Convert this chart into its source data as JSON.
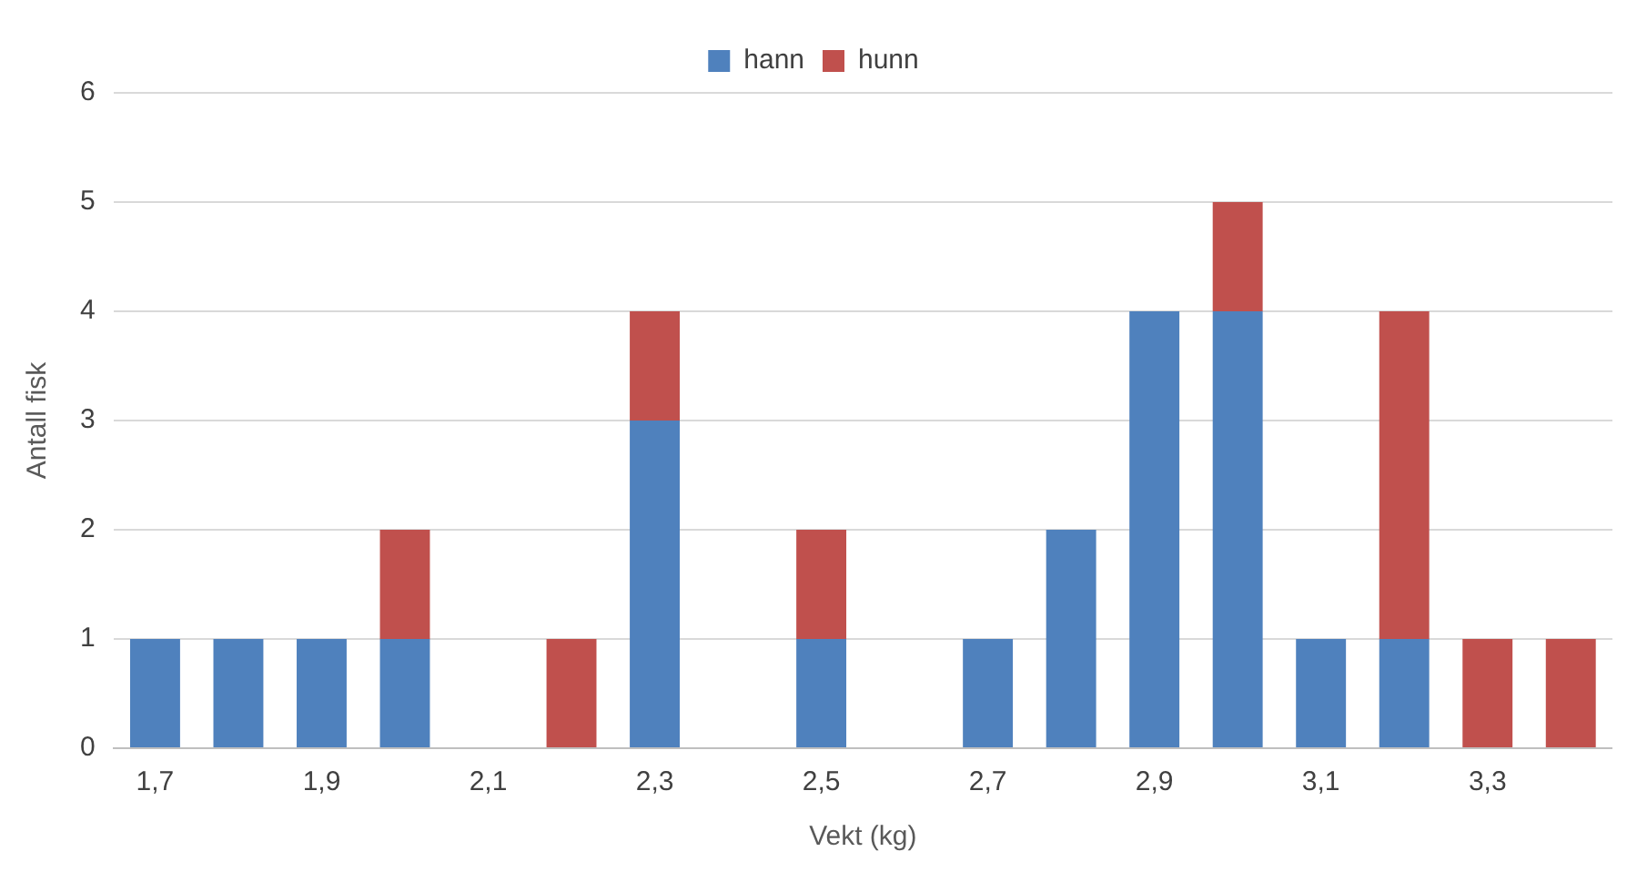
{
  "chart_data": {
    "type": "bar",
    "xlabel": "Vekt (kg)",
    "ylabel": "Antall fisk",
    "stacked": true,
    "legend": "top",
    "grid": "y",
    "categories": [
      "1,7",
      null,
      "1,9",
      null,
      "2,1",
      null,
      "2,3",
      null,
      "2,5",
      null,
      "2,7",
      null,
      "2,9",
      null,
      "3,1",
      null,
      "3,3",
      null
    ],
    "series": [
      {
        "name": "hann",
        "color": "#4f81bd",
        "values": [
          1,
          1,
          1,
          1,
          0,
          0,
          3,
          0,
          1,
          0,
          1,
          2,
          4,
          4,
          1,
          1,
          0,
          0
        ]
      },
      {
        "name": "hunn",
        "color": "#c0504d",
        "values": [
          0,
          0,
          0,
          1,
          0,
          1,
          1,
          0,
          1,
          0,
          0,
          0,
          0,
          1,
          0,
          3,
          1,
          1
        ]
      }
    ],
    "ylim": [
      0,
      6
    ],
    "yticks": [
      0,
      1,
      2,
      3,
      4,
      5,
      6
    ]
  }
}
